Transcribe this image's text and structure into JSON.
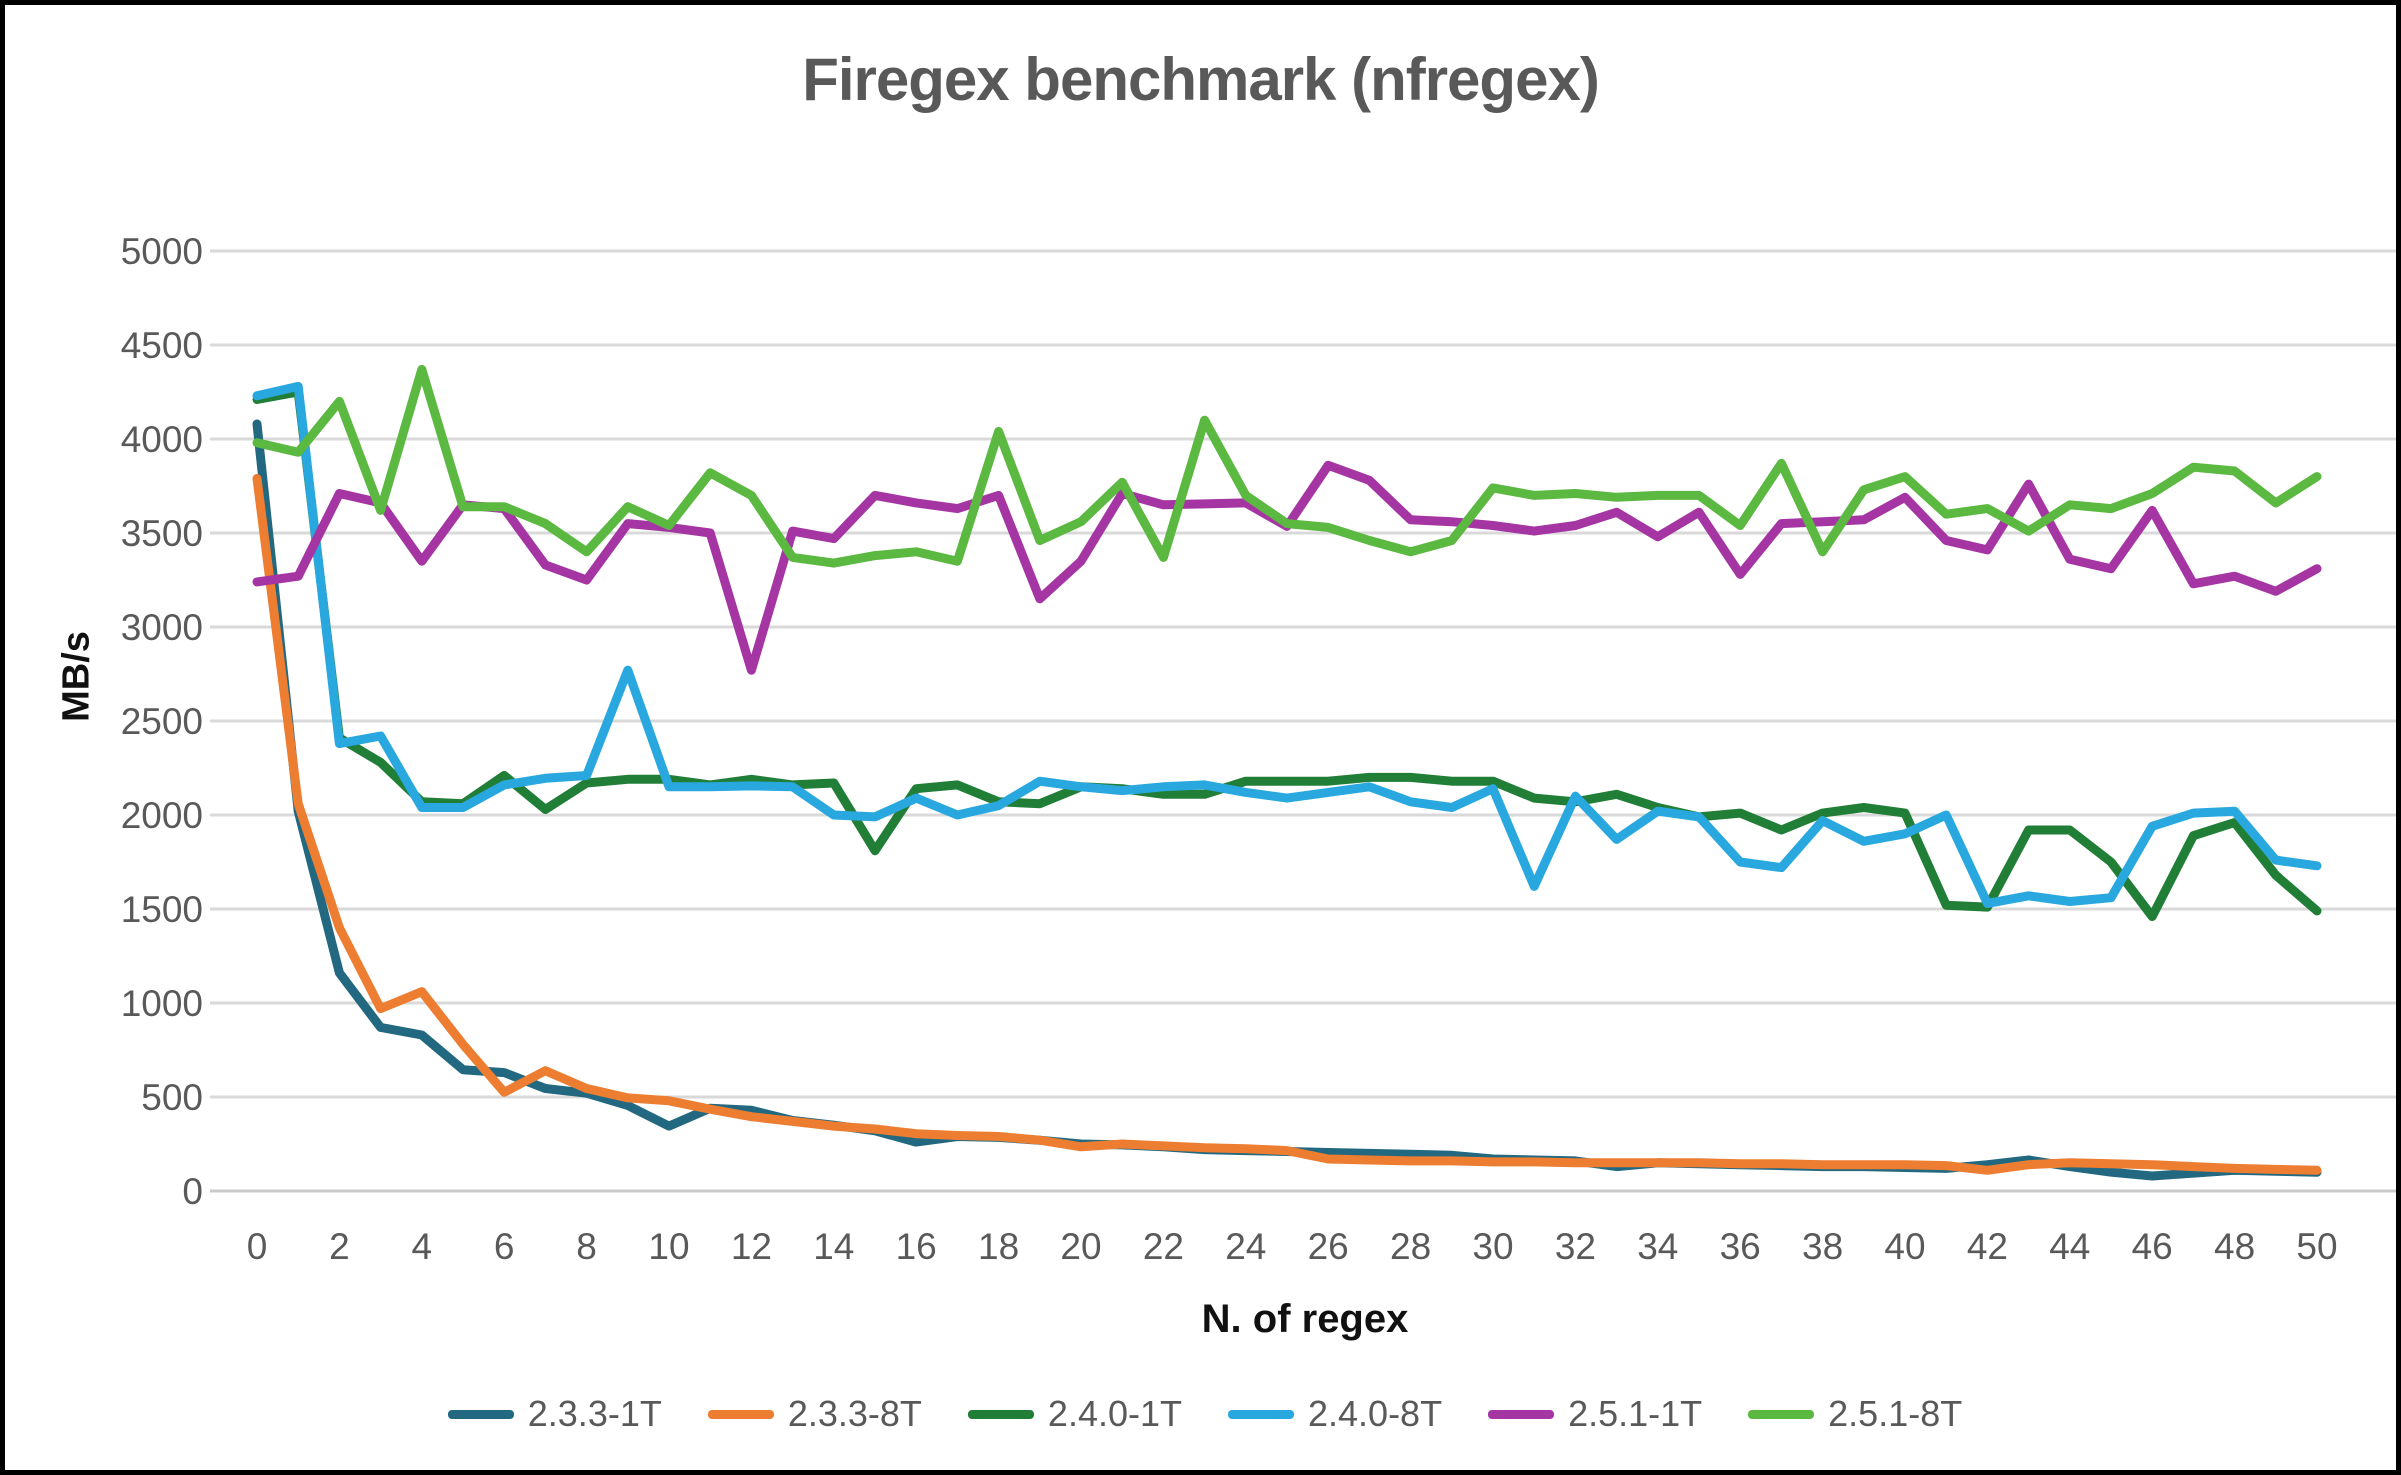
{
  "title": "Firegex benchmark (nfregex)",
  "y_axis": {
    "label": "MB/s",
    "min": 0,
    "max": 5000,
    "step": 500
  },
  "x_axis": {
    "label": "N. of regex",
    "min": 0,
    "max": 50,
    "tick_step": 2
  },
  "colors": {
    "grid": "#D9D9D9",
    "axis_line": "#C9C9C9",
    "tick_text": "#595959",
    "title_text": "#595959"
  },
  "legend": [
    {
      "label": "2.3.3-1T",
      "color": "#226880"
    },
    {
      "label": "2.3.3-8T",
      "color": "#ED7D31"
    },
    {
      "label": "2.4.0-1T",
      "color": "#217E37"
    },
    {
      "label": "2.4.0-8T",
      "color": "#29A8E0"
    },
    {
      "label": "2.5.1-1T",
      "color": "#A435A3"
    },
    {
      "label": "2.5.1-8T",
      "color": "#5BB840"
    }
  ],
  "chart_data": {
    "type": "line",
    "title": "Firegex benchmark (nfregex)",
    "xlabel": "N. of regex",
    "ylabel": "MB/s",
    "xlim": [
      0,
      50
    ],
    "ylim": [
      0,
      5000
    ],
    "y_step": 500,
    "x_tick_step": 2,
    "grid": true,
    "legend_position": "bottom",
    "x": [
      0,
      1,
      2,
      3,
      4,
      5,
      6,
      7,
      8,
      9,
      10,
      11,
      12,
      13,
      14,
      15,
      16,
      17,
      18,
      19,
      20,
      21,
      22,
      23,
      24,
      25,
      26,
      27,
      28,
      29,
      30,
      31,
      32,
      33,
      34,
      35,
      36,
      37,
      38,
      39,
      40,
      41,
      42,
      43,
      44,
      45,
      46,
      47,
      48,
      49,
      50
    ],
    "series": [
      {
        "name": "2.3.3-1T",
        "color": "#226880",
        "values": [
          4080,
          2020,
          1160,
          870,
          830,
          645,
          630,
          545,
          520,
          455,
          345,
          440,
          430,
          375,
          350,
          320,
          260,
          290,
          285,
          270,
          250,
          245,
          235,
          220,
          215,
          210,
          205,
          200,
          195,
          190,
          170,
          165,
          160,
          130,
          150,
          145,
          140,
          135,
          130,
          130,
          125,
          120,
          140,
          165,
          130,
          100,
          80,
          95,
          110,
          105,
          100
        ]
      },
      {
        "name": "2.3.3-8T",
        "color": "#ED7D31",
        "values": [
          3790,
          2060,
          1400,
          970,
          1060,
          780,
          525,
          640,
          545,
          495,
          480,
          435,
          395,
          370,
          345,
          330,
          305,
          295,
          290,
          270,
          235,
          250,
          240,
          230,
          225,
          215,
          170,
          165,
          160,
          160,
          155,
          155,
          150,
          150,
          150,
          150,
          145,
          145,
          140,
          140,
          140,
          135,
          110,
          140,
          150,
          145,
          140,
          130,
          120,
          115,
          110
        ]
      },
      {
        "name": "2.4.0-1T",
        "color": "#217E37",
        "values": [
          4210,
          4250,
          2410,
          2280,
          2070,
          2060,
          2210,
          2030,
          2170,
          2190,
          2190,
          2160,
          2190,
          2160,
          2170,
          1810,
          2140,
          2160,
          2070,
          2060,
          2150,
          2140,
          2110,
          2110,
          2180,
          2180,
          2180,
          2200,
          2200,
          2180,
          2180,
          2090,
          2070,
          2110,
          2040,
          1990,
          2010,
          1920,
          2010,
          2040,
          2010,
          1520,
          1510,
          1920,
          1920,
          1750,
          1460,
          1890,
          1960,
          1680,
          1490
        ]
      },
      {
        "name": "2.4.0-8T",
        "color": "#29A8E0",
        "values": [
          4230,
          4280,
          2380,
          2420,
          2040,
          2040,
          2160,
          2195,
          2210,
          2770,
          2150,
          2150,
          2155,
          2150,
          2000,
          1990,
          2090,
          2000,
          2050,
          2180,
          2150,
          2130,
          2150,
          2160,
          2120,
          2090,
          2120,
          2150,
          2070,
          2040,
          2140,
          1620,
          2100,
          1870,
          2020,
          1990,
          1750,
          1720,
          1970,
          1860,
          1900,
          2000,
          1530,
          1570,
          1540,
          1560,
          1940,
          2010,
          2020,
          1760,
          1730
        ]
      },
      {
        "name": "2.5.1-1T",
        "color": "#A435A3",
        "values": [
          3240,
          3270,
          3710,
          3660,
          3350,
          3650,
          3630,
          3330,
          3250,
          3550,
          3530,
          3500,
          2770,
          3510,
          3470,
          3700,
          3660,
          3630,
          3700,
          3150,
          3350,
          3710,
          3650,
          3655,
          3660,
          3535,
          3860,
          3780,
          3570,
          3560,
          3540,
          3510,
          3540,
          3610,
          3480,
          3610,
          3280,
          3550,
          3560,
          3570,
          3690,
          3460,
          3410,
          3760,
          3360,
          3310,
          3620,
          3230,
          3270,
          3190,
          3310
        ]
      },
      {
        "name": "2.5.1-8T",
        "color": "#5BB840",
        "values": [
          3980,
          3930,
          4200,
          3620,
          4370,
          3640,
          3640,
          3550,
          3400,
          3640,
          3540,
          3820,
          3700,
          3370,
          3340,
          3380,
          3400,
          3350,
          4040,
          3460,
          3560,
          3770,
          3370,
          4100,
          3700,
          3550,
          3530,
          3460,
          3400,
          3460,
          3740,
          3700,
          3710,
          3690,
          3700,
          3700,
          3540,
          3870,
          3400,
          3730,
          3800,
          3600,
          3630,
          3510,
          3650,
          3630,
          3710,
          3850,
          3830,
          3660,
          3800
        ]
      }
    ]
  }
}
